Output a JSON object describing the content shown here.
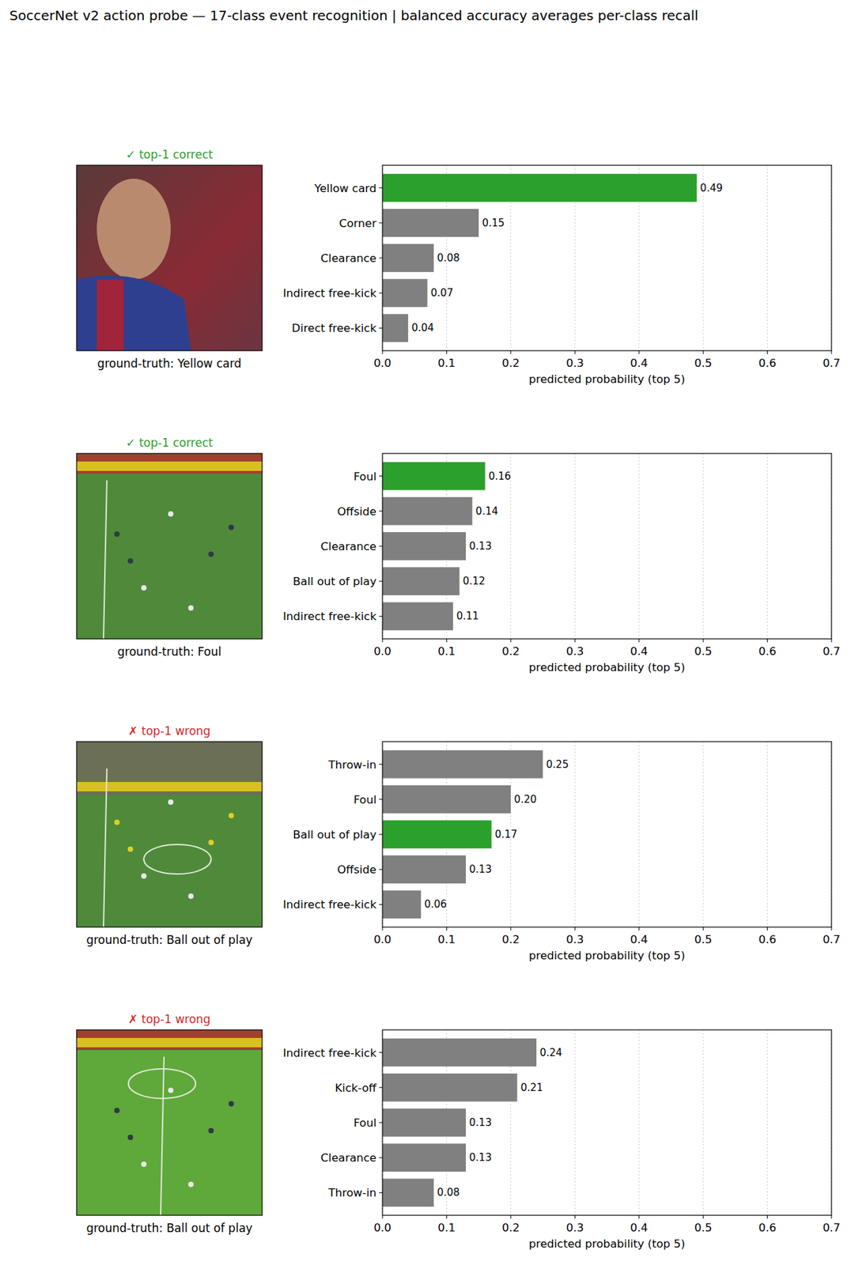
{
  "title": "SoccerNet v2 action probe — 17-class event recognition  |  balanced accuracy averages per-class recall",
  "chart_data": [
    {
      "type": "bar",
      "orientation": "horizontal",
      "title": "✓ top-1 correct",
      "caption": "ground-truth: Yellow card",
      "categories": [
        "Yellow card",
        "Corner",
        "Clearance",
        "Indirect free-kick",
        "Direct free-kick"
      ],
      "values": [
        0.49,
        0.15,
        0.08,
        0.07,
        0.04
      ],
      "colors": [
        "#2ca02c",
        "#808080",
        "#808080",
        "#808080",
        "#808080"
      ],
      "xlabel": "predicted probability (top 5)",
      "xlim": [
        0,
        0.7
      ],
      "xticks": [
        {
          "value": 0,
          "label": "0.0"
        },
        0.1,
        0.2,
        0.3,
        0.4,
        0.5,
        0.6,
        0.7
      ],
      "grid": true,
      "data_labels": true
    },
    {
      "type": "bar",
      "orientation": "horizontal",
      "title": "✓ top-1 correct",
      "caption": "ground-truth: Foul",
      "categories": [
        "Foul",
        "Offside",
        "Clearance",
        "Ball out of play",
        "Indirect free-kick"
      ],
      "values": [
        0.16,
        0.14,
        0.13,
        0.12,
        0.11
      ],
      "colors": [
        "#2ca02c",
        "#808080",
        "#808080",
        "#808080",
        "#808080"
      ],
      "xlabel": "predicted probability (top 5)",
      "xlim": [
        0,
        0.7
      ],
      "xticks": [
        {
          "value": 0,
          "label": "0.0"
        },
        0.1,
        0.2,
        0.3,
        0.4,
        0.5,
        0.6,
        0.7
      ],
      "grid": true,
      "data_labels": true
    },
    {
      "type": "bar",
      "orientation": "horizontal",
      "title": "✗ top-1 wrong",
      "caption": "ground-truth: Ball out of play",
      "categories": [
        "Throw-in",
        "Foul",
        "Ball out of play",
        "Offside",
        "Indirect free-kick"
      ],
      "values": [
        0.25,
        0.2,
        0.17,
        0.13,
        0.06
      ],
      "colors": [
        "#808080",
        "#808080",
        "#2ca02c",
        "#808080",
        "#808080"
      ],
      "xlabel": "predicted probability (top 5)",
      "xlim": [
        0,
        0.7
      ],
      "xticks": [
        {
          "value": 0,
          "label": "0.0"
        },
        0.1,
        0.2,
        0.3,
        0.4,
        0.5,
        0.6,
        0.7
      ],
      "grid": true,
      "data_labels": true
    },
    {
      "type": "bar",
      "orientation": "horizontal",
      "title": "✗ top-1 wrong",
      "caption": "ground-truth: Ball out of play",
      "categories": [
        "Indirect free-kick",
        "Kick-off",
        "Foul",
        "Clearance",
        "Throw-in"
      ],
      "values": [
        0.24,
        0.21,
        0.13,
        0.13,
        0.08
      ],
      "colors": [
        "#808080",
        "#808080",
        "#808080",
        "#808080",
        "#808080"
      ],
      "xlabel": "predicted probability (top 5)",
      "xlim": [
        0,
        0.7
      ],
      "xticks": [
        {
          "value": 0,
          "label": "0.0"
        },
        0.1,
        0.2,
        0.3,
        0.4,
        0.5,
        0.6,
        0.7
      ],
      "grid": true,
      "data_labels": true
    }
  ]
}
